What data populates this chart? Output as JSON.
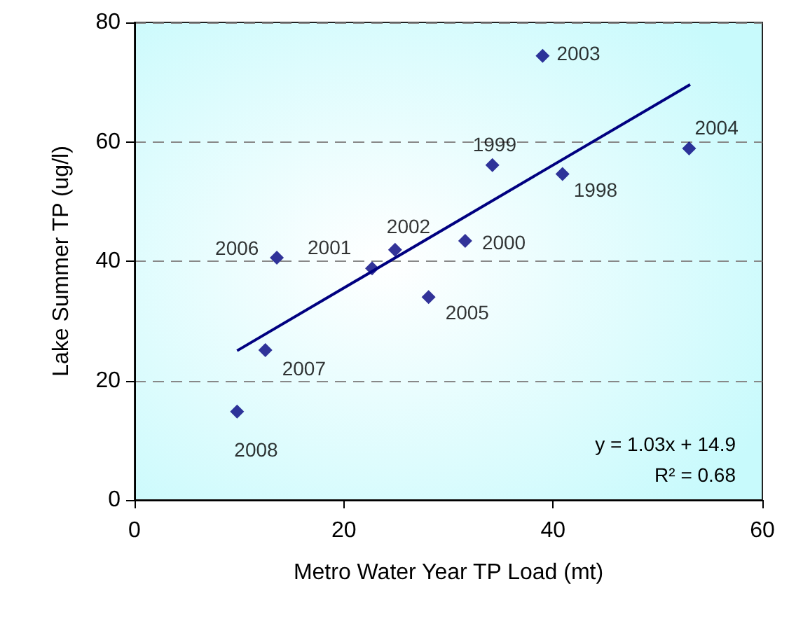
{
  "chart_data": {
    "type": "scatter",
    "xlabel": "Metro Water Year TP Load (mt)",
    "ylabel": "Lake Summer TP (ug/l)",
    "xlim": [
      0,
      60
    ],
    "xticks": [
      0,
      20,
      40,
      60
    ],
    "ylim": [
      0,
      80
    ],
    "yticks": [
      0,
      20,
      40,
      60,
      80
    ],
    "grid": "y",
    "marker": "diamond",
    "series": [
      {
        "color": "#000080",
        "x": [
          40.9,
          34.2,
          31.6,
          22.7,
          24.9,
          39.0,
          53.0,
          28.1,
          13.6,
          12.5,
          9.8
        ],
        "values": [
          54.6,
          56.1,
          43.4,
          38.8,
          41.9,
          74.4,
          58.9,
          34.0,
          40.6,
          25.1,
          14.8
        ]
      },
      {
        "type": "line",
        "color": "#000080",
        "marker": "none",
        "x": [
          9.8,
          53.1
        ],
        "values": [
          25.0,
          69.6
        ]
      }
    ],
    "annotations": [
      {
        "text": "1998",
        "x": 40.9,
        "y": 54.6
      },
      {
        "text": "1999",
        "x": 34.2,
        "y": 56.1
      },
      {
        "text": "2000",
        "x": 31.6,
        "y": 43.4
      },
      {
        "text": "2001",
        "x": 22.7,
        "y": 38.8
      },
      {
        "text": "2002",
        "x": 24.9,
        "y": 41.9
      },
      {
        "text": "2003",
        "x": 39.0,
        "y": 74.4
      },
      {
        "text": "2004",
        "x": 53.0,
        "y": 58.9
      },
      {
        "text": "2005",
        "x": 28.1,
        "y": 34.0
      },
      {
        "text": "2006",
        "x": 13.6,
        "y": 40.6
      },
      {
        "text": "2007",
        "x": 12.5,
        "y": 25.1
      },
      {
        "text": "2008",
        "x": 9.8,
        "y": 14.8
      },
      "y = 1.03x + 14.9",
      "R² = 0.68"
    ]
  }
}
